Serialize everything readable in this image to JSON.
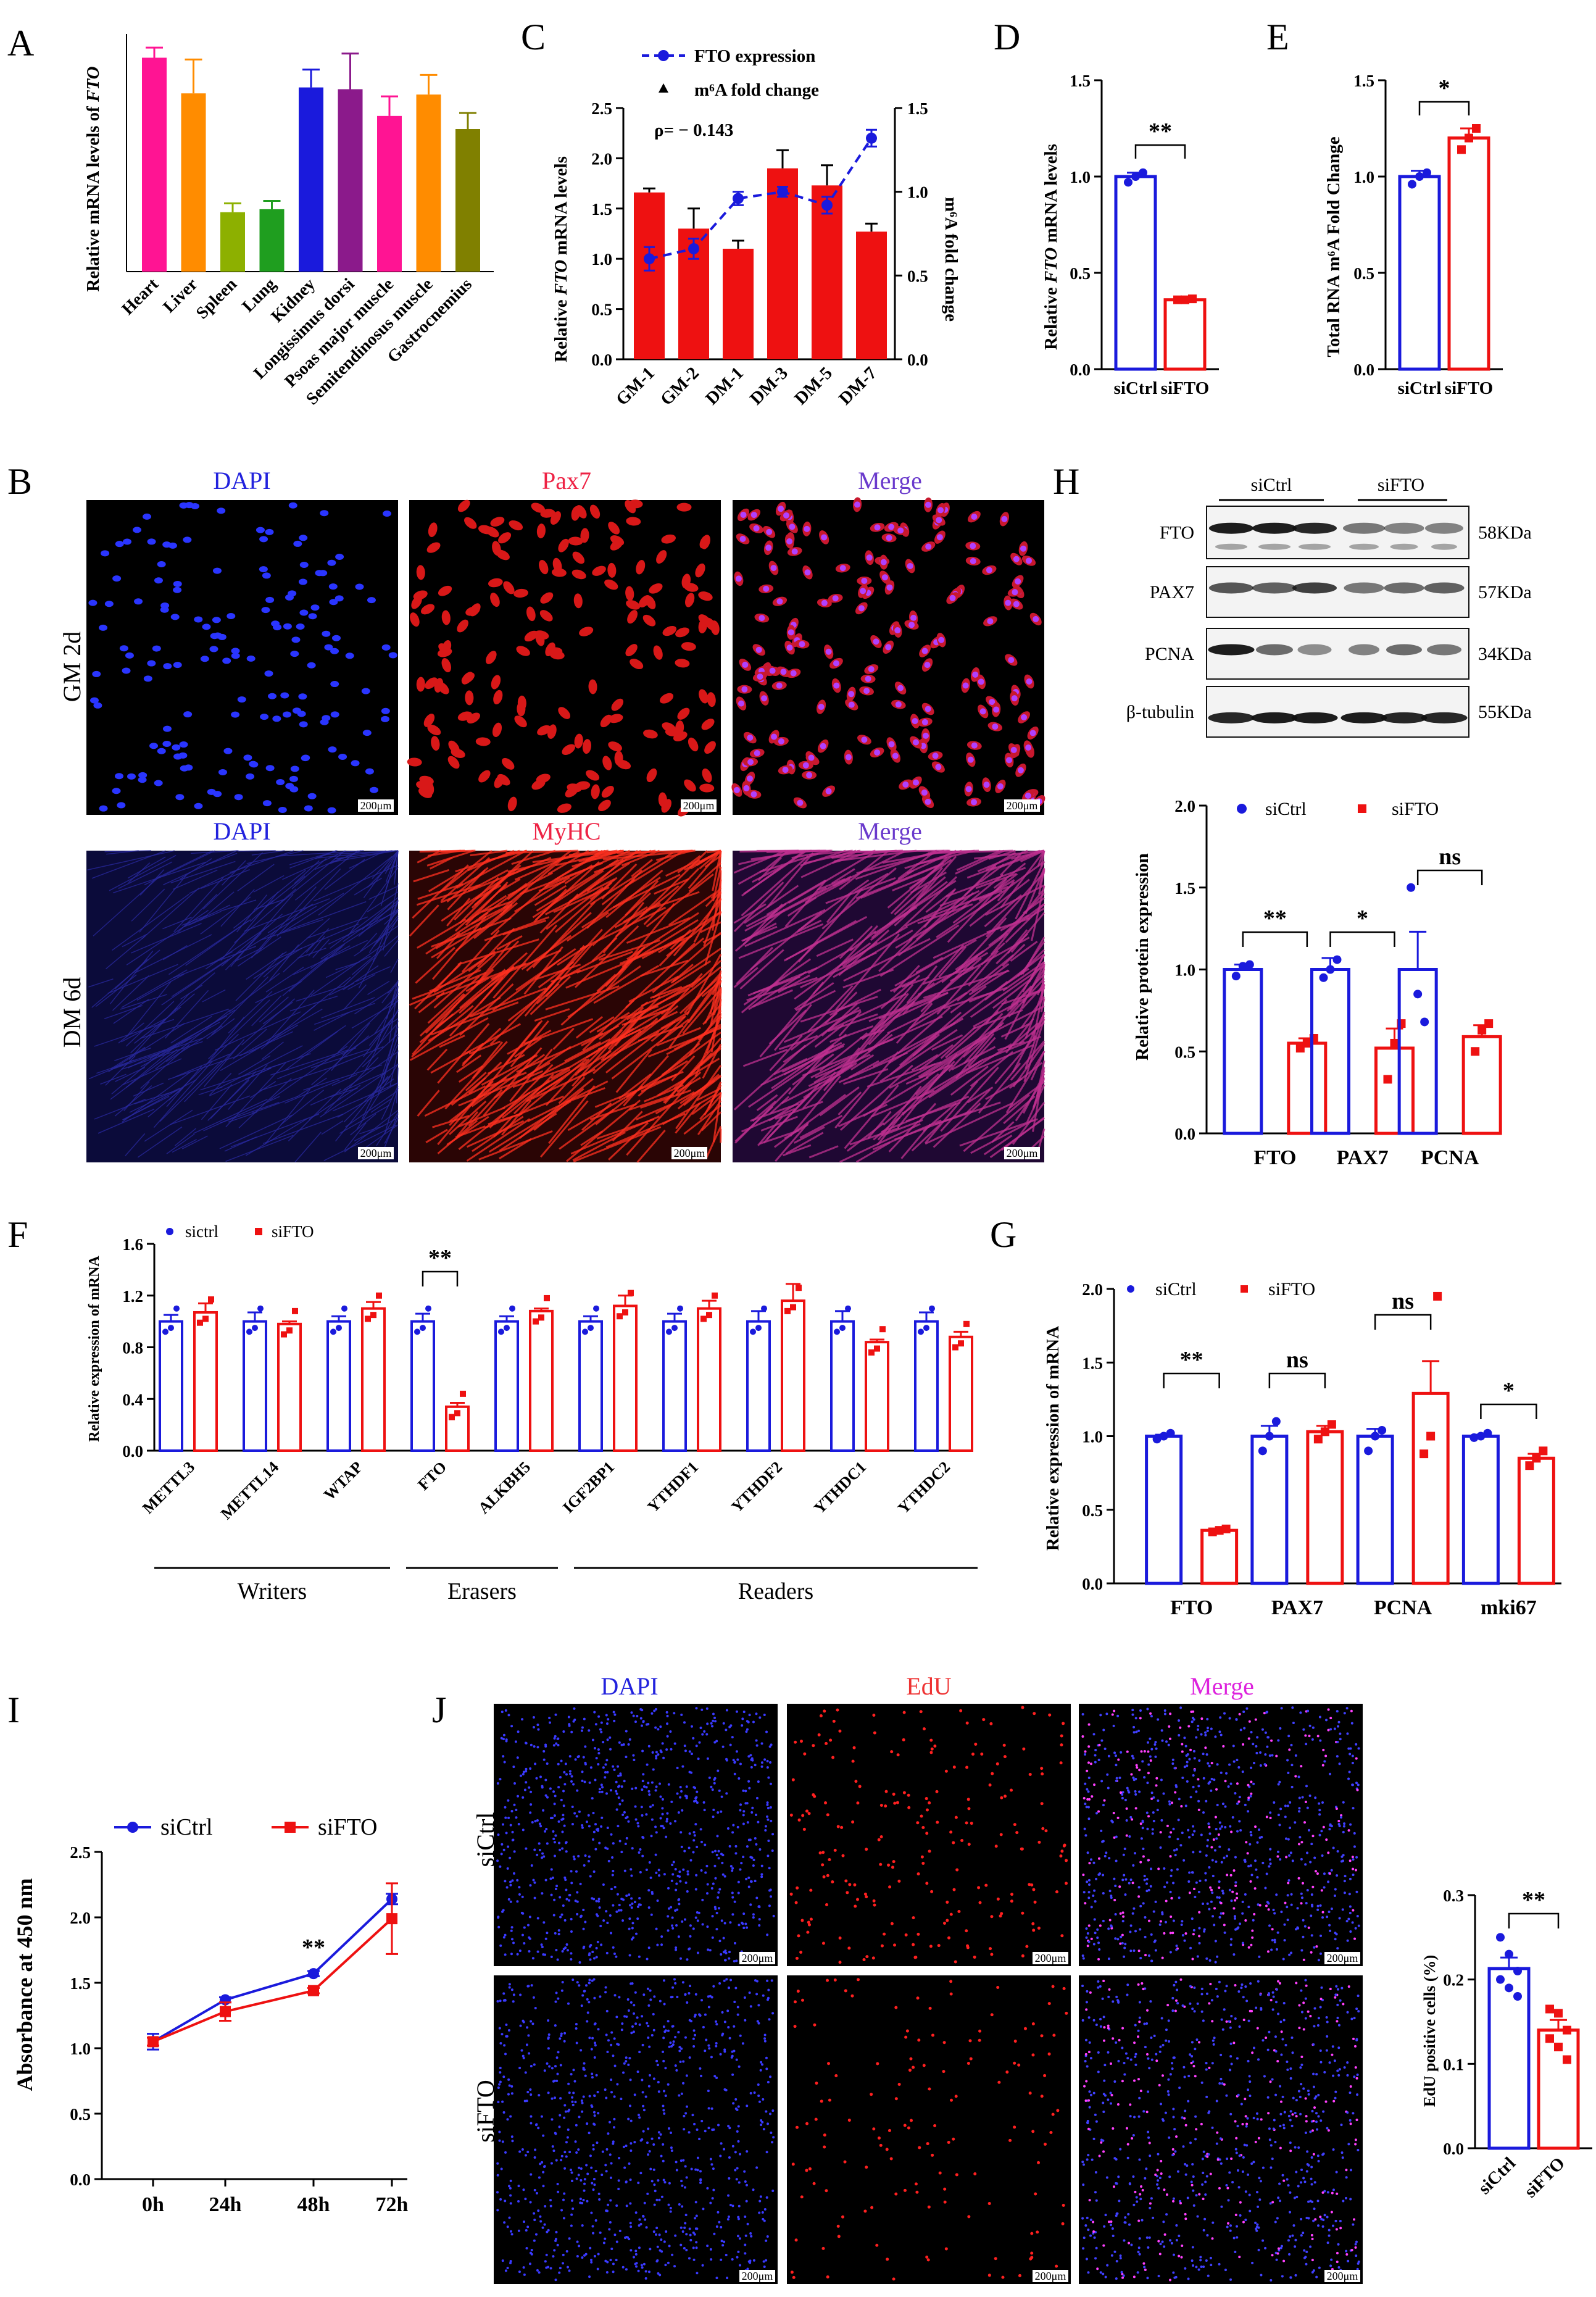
{
  "panel_letters": [
    "A",
    "C",
    "D",
    "E",
    "B",
    "H",
    "F",
    "G",
    "I",
    "J"
  ],
  "chart_data": [
    {
      "id": "A",
      "type": "bar",
      "ylabel_pre": "Relative mRNA levels of ",
      "ylabel_gene": "FTO",
      "categories": [
        "Heart",
        "Liver",
        "Spleen",
        "Lung",
        "Kidney",
        "Longissimus dorsi",
        "Psoas major muscle",
        "Semitendinosus muscle",
        "Gastrocnemius"
      ],
      "values": [
        3.6,
        3.0,
        1.0,
        1.05,
        3.1,
        3.07,
        2.62,
        2.98,
        2.4
      ],
      "errors": [
        0.17,
        0.57,
        0.15,
        0.14,
        0.3,
        0.6,
        0.33,
        0.33,
        0.27
      ],
      "colors": [
        "#ff1493",
        "#ff8c00",
        "#8db000",
        "#1f9e1f",
        "#1a1adc",
        "#8b1a8b",
        "#ff1493",
        "#ff8c00",
        "#808000"
      ],
      "ylim": [
        0,
        4
      ]
    },
    {
      "id": "C",
      "type": "bar+line",
      "categories": [
        "GM-1",
        "GM-2",
        "DM-1",
        "DM-3",
        "DM-5",
        "DM-7"
      ],
      "ylabel_pre": "Relative ",
      "ylabel_gene": "FTO",
      "ylabel_post": " mRNA levels",
      "y2label": "m⁶A fold change",
      "y_ticks": [
        "0.0",
        "0.5",
        "1.0",
        "1.5",
        "2.0",
        "2.5"
      ],
      "y2_ticks": [
        "0.0",
        "0.5",
        "1.0",
        "1.5"
      ],
      "bar_series_name": "FTO expression",
      "bar_values": [
        1.66,
        1.3,
        1.1,
        1.9,
        1.73,
        1.27
      ],
      "bar_errors": [
        0.04,
        0.2,
        0.08,
        0.18,
        0.2,
        0.08
      ],
      "line_series_name": "m⁶A fold change",
      "line_values": [
        0.6,
        0.66,
        0.96,
        1.0,
        0.92,
        1.32
      ],
      "line_errors": [
        0.07,
        0.06,
        0.04,
        0.03,
        0.05,
        0.05
      ],
      "ylim": [
        0,
        2.5
      ],
      "y2lim": [
        0,
        1.5
      ],
      "annotation": "ρ= − 0.143"
    },
    {
      "id": "D",
      "type": "bar",
      "ylabel_pre": "Relative ",
      "ylabel_gene": "FTO",
      "ylabel_post": " mRNA levels",
      "categories": [
        "siCtrl",
        "siFTO"
      ],
      "values": [
        1.0,
        0.36
      ],
      "errors": [
        0.02,
        0.01
      ],
      "ylim": [
        0,
        1.5
      ],
      "y_ticks": [
        "0.0",
        "0.5",
        "1.0",
        "1.5"
      ],
      "points": [
        [
          0.97,
          1.0,
          1.02
        ],
        [
          0.36,
          0.36,
          0.365
        ]
      ],
      "significance": "**"
    },
    {
      "id": "E",
      "type": "bar",
      "ylabel": "Total RNA m⁶A Fold Change",
      "categories": [
        "siCtrl",
        "siFTO"
      ],
      "values": [
        1.0,
        1.2
      ],
      "errors": [
        0.03,
        0.05
      ],
      "ylim": [
        0,
        1.5
      ],
      "y_ticks": [
        "0.0",
        "0.5",
        "1.0",
        "1.5"
      ],
      "points": [
        [
          0.96,
          1.0,
          1.02
        ],
        [
          1.14,
          1.2,
          1.25
        ]
      ],
      "significance": "*"
    },
    {
      "id": "H",
      "type": "bar",
      "ylabel": "Relative protein expression",
      "categories": [
        "FTO",
        "PAX7",
        "PCNA"
      ],
      "series": [
        {
          "name": "siCtrl",
          "values": [
            1.0,
            1.0,
            1.0
          ],
          "errors": [
            0.03,
            0.07,
            0.23
          ],
          "points": [
            [
              0.96,
              1.02,
              1.03
            ],
            [
              0.95,
              1.0,
              1.06
            ],
            [
              1.5,
              0.85,
              0.68
            ]
          ]
        },
        {
          "name": "siFTO",
          "values": [
            0.55,
            0.52,
            0.59
          ],
          "errors": [
            0.03,
            0.12,
            0.07
          ],
          "points": [
            [
              0.52,
              0.55,
              0.58
            ],
            [
              0.33,
              0.55,
              0.67
            ],
            [
              0.5,
              0.63,
              0.67
            ]
          ]
        }
      ],
      "ylim": [
        0,
        2.0
      ],
      "y_ticks": [
        "0.0",
        "0.5",
        "1.0",
        "1.5",
        "2.0"
      ],
      "significance": [
        "**",
        "*",
        "ns"
      ]
    },
    {
      "id": "F",
      "type": "bar",
      "ylabel": "Relative expression of mRNA",
      "categories": [
        "METTL3",
        "METTL14",
        "WTAP",
        "FTO",
        "ALKBH5",
        "IGF2BP1",
        "YTHDF1",
        "YTHDF2",
        "YTHDC1",
        "YTHDC2"
      ],
      "series": [
        {
          "name": "sictrl",
          "values": [
            1.0,
            1.0,
            1.0,
            1.0,
            1.0,
            1.0,
            1.0,
            1.0,
            1.0,
            1.0
          ],
          "errors": [
            0.05,
            0.07,
            0.04,
            0.06,
            0.04,
            0.04,
            0.06,
            0.08,
            0.08,
            0.07
          ]
        },
        {
          "name": "siFTO",
          "values": [
            1.07,
            0.98,
            1.1,
            0.34,
            1.08,
            1.12,
            1.1,
            1.16,
            0.84,
            0.88
          ],
          "errors": [
            0.07,
            0.02,
            0.05,
            0.03,
            0.02,
            0.08,
            0.06,
            0.13,
            0.02,
            0.04
          ]
        }
      ],
      "ylim": [
        0,
        1.6
      ],
      "y_ticks": [
        "0.0",
        "0.4",
        "0.8",
        "1.2",
        "1.6"
      ],
      "groups": [
        {
          "label": "Writers",
          "from": 0,
          "to": 2
        },
        {
          "label": "Erasers",
          "from": 3,
          "to": 4
        },
        {
          "label": "Readers",
          "from": 5,
          "to": 9
        }
      ],
      "significance_on": "FTO",
      "significance": "**"
    },
    {
      "id": "G",
      "type": "bar",
      "ylabel": "Relative expression of mRNA",
      "categories": [
        "FTO",
        "PAX7",
        "PCNA",
        "mki67"
      ],
      "series": [
        {
          "name": "siCtrl",
          "values": [
            1.0,
            1.0,
            1.0,
            1.0
          ],
          "errors": [
            0.01,
            0.07,
            0.05,
            0.01
          ],
          "points": [
            [
              0.98,
              1.0,
              1.02
            ],
            [
              0.9,
              1.0,
              1.1
            ],
            [
              0.9,
              1.0,
              1.04
            ],
            [
              0.99,
              1.0,
              1.02
            ]
          ]
        },
        {
          "name": "siFTO",
          "values": [
            0.36,
            1.03,
            1.29,
            0.85
          ],
          "errors": [
            0.01,
            0.04,
            0.22,
            0.03
          ],
          "points": [
            [
              0.35,
              0.36,
              0.37
            ],
            [
              0.98,
              1.03,
              1.08
            ],
            [
              0.88,
              1.0,
              1.95
            ],
            [
              0.8,
              0.85,
              0.9
            ]
          ]
        }
      ],
      "ylim": [
        0,
        2.0
      ],
      "y_ticks": [
        "0.0",
        "0.5",
        "1.0",
        "1.5",
        "2.0"
      ],
      "significance": [
        "**",
        "ns",
        "ns",
        "*"
      ]
    },
    {
      "id": "I",
      "type": "line",
      "ylabel": "Absorbance at 450 nm",
      "x": [
        "0h",
        "24h",
        "48h",
        "72h"
      ],
      "series": [
        {
          "name": "siCtrl",
          "values": [
            1.05,
            1.37,
            1.57,
            2.14
          ],
          "errors": [
            0.06,
            0.02,
            0.02,
            0.04
          ]
        },
        {
          "name": "siFTO",
          "values": [
            1.05,
            1.28,
            1.44,
            1.99
          ],
          "errors": [
            0.03,
            0.07,
            0.02,
            0.27
          ]
        }
      ],
      "ylim": [
        0,
        2.5
      ],
      "y_ticks": [
        "0.0",
        "0.5",
        "1.0",
        "1.5",
        "2.0",
        "2.5"
      ],
      "annotation_at": "48h",
      "annotation": "**"
    },
    {
      "id": "J",
      "type": "bar",
      "ylabel": "EdU positive cells (%)",
      "categories": [
        "siCtrl",
        "siFTO"
      ],
      "values": [
        0.213,
        0.14
      ],
      "errors": [
        0.013,
        0.012
      ],
      "points": [
        [
          0.25,
          0.23,
          0.21,
          0.2,
          0.19,
          0.18
        ],
        [
          0.165,
          0.16,
          0.14,
          0.13,
          0.12,
          0.105
        ]
      ],
      "ylim": [
        0,
        0.3
      ],
      "y_ticks": [
        "0.0",
        "0.1",
        "0.2",
        "0.3"
      ],
      "significance": "**"
    }
  ],
  "panel_B": {
    "col_labels_top": [
      "DAPI",
      "Pax7",
      "Merge"
    ],
    "col_labels_bottom": [
      "DAPI",
      "MyHC",
      "Merge"
    ],
    "row_labels": [
      "GM 2d",
      "DM 6d"
    ],
    "scale_bar": "200μm"
  },
  "panel_H_blot": {
    "groups": [
      "siCtrl",
      "siFTO"
    ],
    "rows": [
      {
        "protein": "FTO",
        "size": "58KDa"
      },
      {
        "protein": "PAX7",
        "size": "57KDa"
      },
      {
        "protein": "PCNA",
        "size": "34KDa"
      },
      {
        "protein": "β-tubulin",
        "size": "55KDa"
      }
    ]
  },
  "panel_J": {
    "col_labels": [
      "DAPI",
      "EdU",
      "Merge"
    ],
    "row_labels": [
      "siCtrl",
      "siFTO"
    ],
    "scale_bar": "200μm"
  },
  "colors": {
    "blue": "#1a1adc",
    "red": "#ee1111",
    "image_bg": "#000000"
  }
}
